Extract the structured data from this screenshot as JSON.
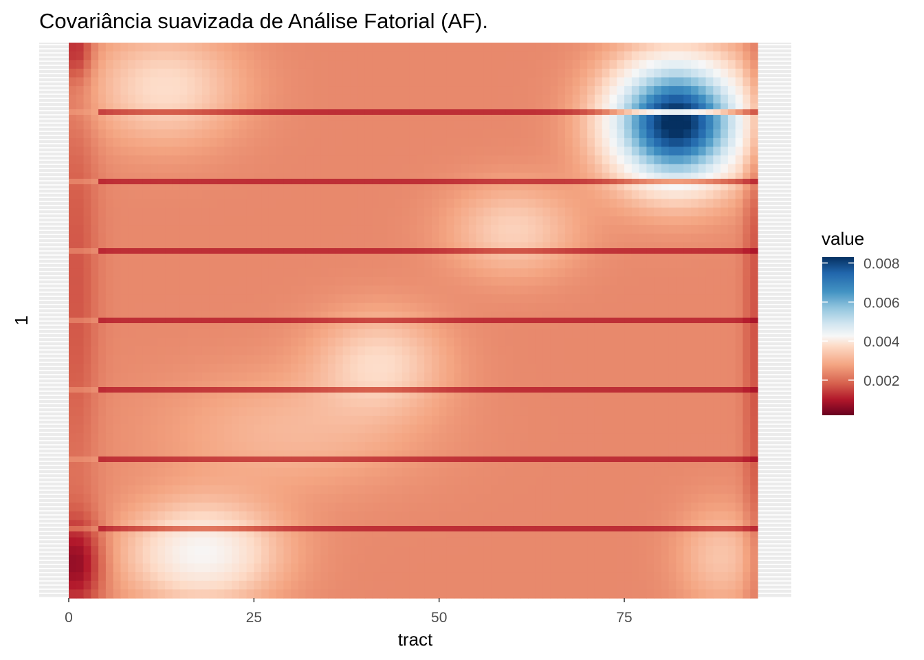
{
  "chart_data": {
    "type": "heatmap",
    "title": "Covariância suavizada de Análise Fatorial (AF).",
    "xlabel": "tract",
    "ylabel": "1",
    "x_ticks": [
      "0",
      "25",
      "50",
      "75"
    ],
    "x_tick_values": [
      0,
      25,
      50,
      75
    ],
    "xlim": [
      0,
      93
    ],
    "grid": "horizontal light gray stripes",
    "legend": {
      "title": "value",
      "position": "right",
      "labels": [
        "0.008",
        "0.006",
        "0.004",
        "0.002"
      ],
      "values": [
        0.008,
        0.006,
        0.004,
        0.002
      ],
      "range": [
        0.0002,
        0.0083
      ],
      "colors": [
        "#67001f",
        "#b2182b",
        "#d6604d",
        "#f4a582",
        "#fddbc7",
        "#f7f7f7",
        "#d1e5f0",
        "#92c5de",
        "#4393c3",
        "#2166ac",
        "#053061"
      ]
    },
    "grid_shape": {
      "rows": 8,
      "cols": 93
    },
    "hot_spots": [
      {
        "x": 82,
        "row": 1.15,
        "value": 0.0083
      },
      {
        "x": 13,
        "row": 0.6,
        "value": 0.0038
      },
      {
        "x": 42,
        "row": 4.6,
        "value": 0.0037
      },
      {
        "x": 18,
        "row": 7.35,
        "value": 0.0044
      },
      {
        "x": 60,
        "row": 2.7,
        "value": 0.0036
      }
    ]
  }
}
